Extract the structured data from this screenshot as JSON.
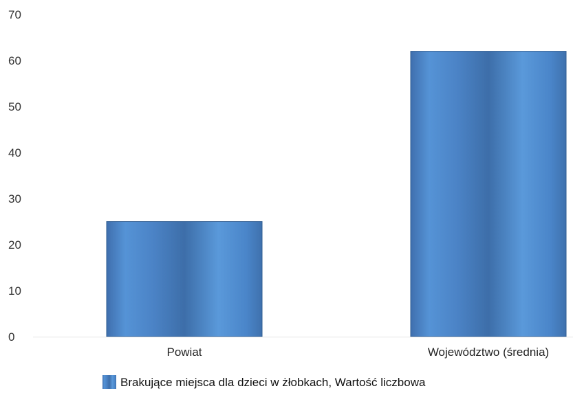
{
  "chart_data": {
    "type": "bar",
    "categories": [
      "Powiat",
      "Województwo (średnia)"
    ],
    "series": [
      {
        "name": "Brakujące miejsca dla dzieci w żłobkach, Wartość liczbowa",
        "values": [
          25,
          62
        ],
        "color": "#4a86c8"
      }
    ],
    "yticks": [
      "0",
      "10",
      "20",
      "30",
      "40",
      "50",
      "60",
      "70"
    ],
    "ylim": [
      0,
      70
    ],
    "grid": false,
    "legend": "bottom-center"
  }
}
